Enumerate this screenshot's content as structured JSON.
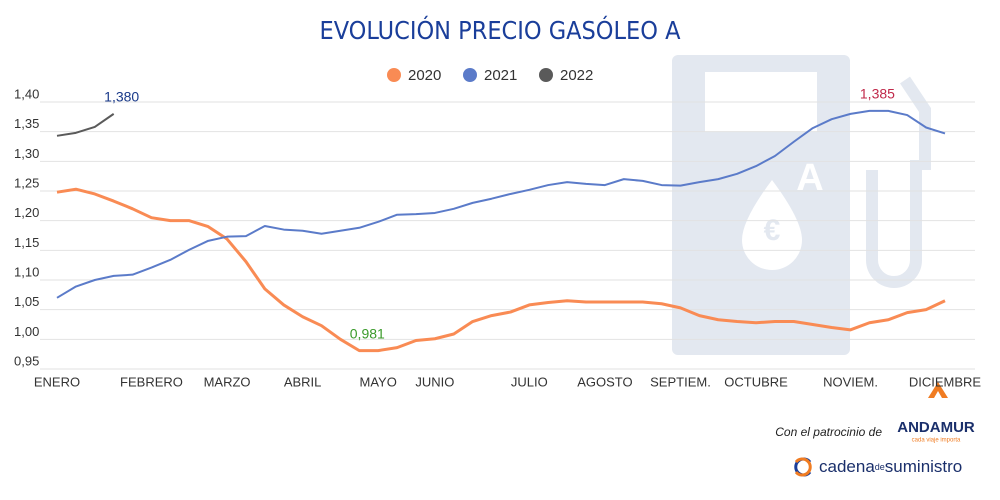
{
  "chart_data": {
    "type": "line",
    "title": "EVOLUCIÓN PRECIO GASÓLEO A",
    "categories": [
      "ENERO",
      null,
      null,
      null,
      null,
      "FEBRERO",
      null,
      null,
      null,
      "MARZO",
      null,
      null,
      null,
      "ABRIL",
      null,
      null,
      null,
      "MAYO",
      null,
      null,
      "JUNIO",
      null,
      null,
      null,
      null,
      "JULIO",
      null,
      null,
      null,
      "AGOSTO",
      null,
      null,
      null,
      "SEPTIEM.",
      null,
      null,
      null,
      "OCTUBRE",
      null,
      null,
      null,
      null,
      "NOVIEM.",
      null,
      null,
      null,
      null,
      "DICIEMBRE"
    ],
    "series": [
      {
        "name": "2020",
        "color": "#f98b54",
        "label_color": "#3a9a2a",
        "values": [
          1.248,
          1.253,
          1.245,
          1.233,
          1.22,
          1.205,
          1.2,
          1.2,
          1.19,
          1.169,
          1.131,
          1.085,
          1.058,
          1.038,
          1.023,
          1.0,
          0.981,
          0.981,
          0.986,
          0.998,
          1.001,
          1.009,
          1.03,
          1.04,
          1.046,
          1.058,
          1.062,
          1.065,
          1.063,
          1.063,
          1.063,
          1.063,
          1.06,
          1.053,
          1.04,
          1.033,
          1.03,
          1.028,
          1.03,
          1.03,
          1.025,
          1.02,
          1.016,
          1.028,
          1.033,
          1.045,
          1.05,
          1.065
        ],
        "value_labels": [
          null,
          null,
          null,
          null,
          null,
          null,
          null,
          null,
          null,
          null,
          null,
          null,
          null,
          null,
          null,
          null,
          "0,981",
          null,
          null,
          null,
          null,
          null,
          null,
          null,
          null,
          null,
          null,
          null,
          null,
          null,
          null,
          null,
          null,
          null,
          null,
          null,
          null,
          null,
          null,
          null,
          null,
          null,
          null,
          null,
          null,
          null,
          null,
          null
        ]
      },
      {
        "name": "2021",
        "color": "#5b7bc9",
        "label_color": "#c0294a",
        "values": [
          1.07,
          1.089,
          1.1,
          1.107,
          1.109,
          1.121,
          1.134,
          1.151,
          1.166,
          1.173,
          1.174,
          1.191,
          1.185,
          1.183,
          1.178,
          1.183,
          1.188,
          1.198,
          1.21,
          1.211,
          1.213,
          1.22,
          1.23,
          1.237,
          1.245,
          1.252,
          1.26,
          1.265,
          1.262,
          1.26,
          1.27,
          1.267,
          1.26,
          1.259,
          1.265,
          1.27,
          1.279,
          1.292,
          1.309,
          1.333,
          1.356,
          1.371,
          1.38,
          1.385,
          1.385,
          1.378,
          1.357,
          1.347
        ],
        "value_labels": [
          null,
          null,
          null,
          null,
          null,
          null,
          null,
          null,
          null,
          null,
          null,
          null,
          null,
          null,
          null,
          null,
          null,
          null,
          null,
          null,
          null,
          null,
          null,
          null,
          null,
          null,
          null,
          null,
          null,
          null,
          null,
          null,
          null,
          null,
          null,
          null,
          null,
          null,
          null,
          null,
          null,
          null,
          null,
          "1,385",
          null,
          null,
          null,
          null
        ]
      },
      {
        "name": "2022",
        "color": "#5a5a5a",
        "label_color": "#1a3a8a",
        "values": [
          1.343,
          1.348,
          1.358,
          1.38,
          null,
          null,
          null,
          null,
          null,
          null,
          null,
          null,
          null,
          null,
          null,
          null,
          null,
          null,
          null,
          null,
          null,
          null,
          null,
          null,
          null,
          null,
          null,
          null,
          null,
          null,
          null,
          null,
          null,
          null,
          null,
          null,
          null,
          null,
          null,
          null,
          null,
          null,
          null,
          null,
          null,
          null,
          null,
          null
        ],
        "value_labels": [
          null,
          null,
          null,
          "1,380",
          null,
          null,
          null,
          null,
          null,
          null,
          null,
          null,
          null,
          null,
          null,
          null,
          null,
          null,
          null,
          null,
          null,
          null,
          null,
          null,
          null,
          null,
          null,
          null,
          null,
          null,
          null,
          null,
          null,
          null,
          null,
          null,
          null,
          null,
          null,
          null,
          null,
          null,
          null,
          null,
          null,
          null,
          null,
          null
        ]
      }
    ],
    "ylim": [
      0.95,
      1.4
    ],
    "yticks": [
      {
        "value": 0.95,
        "label": "0,95"
      },
      {
        "value": 1.0,
        "label": "1,00"
      },
      {
        "value": 1.05,
        "label": "1,05"
      },
      {
        "value": 1.1,
        "label": "1,10"
      },
      {
        "value": 1.15,
        "label": "1,15"
      },
      {
        "value": 1.2,
        "label": "1,20"
      },
      {
        "value": 1.25,
        "label": "1,25"
      },
      {
        "value": 1.3,
        "label": "1,30"
      },
      {
        "value": 1.35,
        "label": "1,35"
      },
      {
        "value": 1.4,
        "label": "1,40"
      }
    ],
    "grid": true,
    "legend": "top"
  },
  "footer": {
    "sponsor_text": "Con el patrocinio de",
    "sponsor": "ANDAMUR",
    "sponsor_tagline": "cada viaje importa",
    "brand_a": "cadena",
    "brand_b": "de",
    "brand_c": "suministro"
  }
}
